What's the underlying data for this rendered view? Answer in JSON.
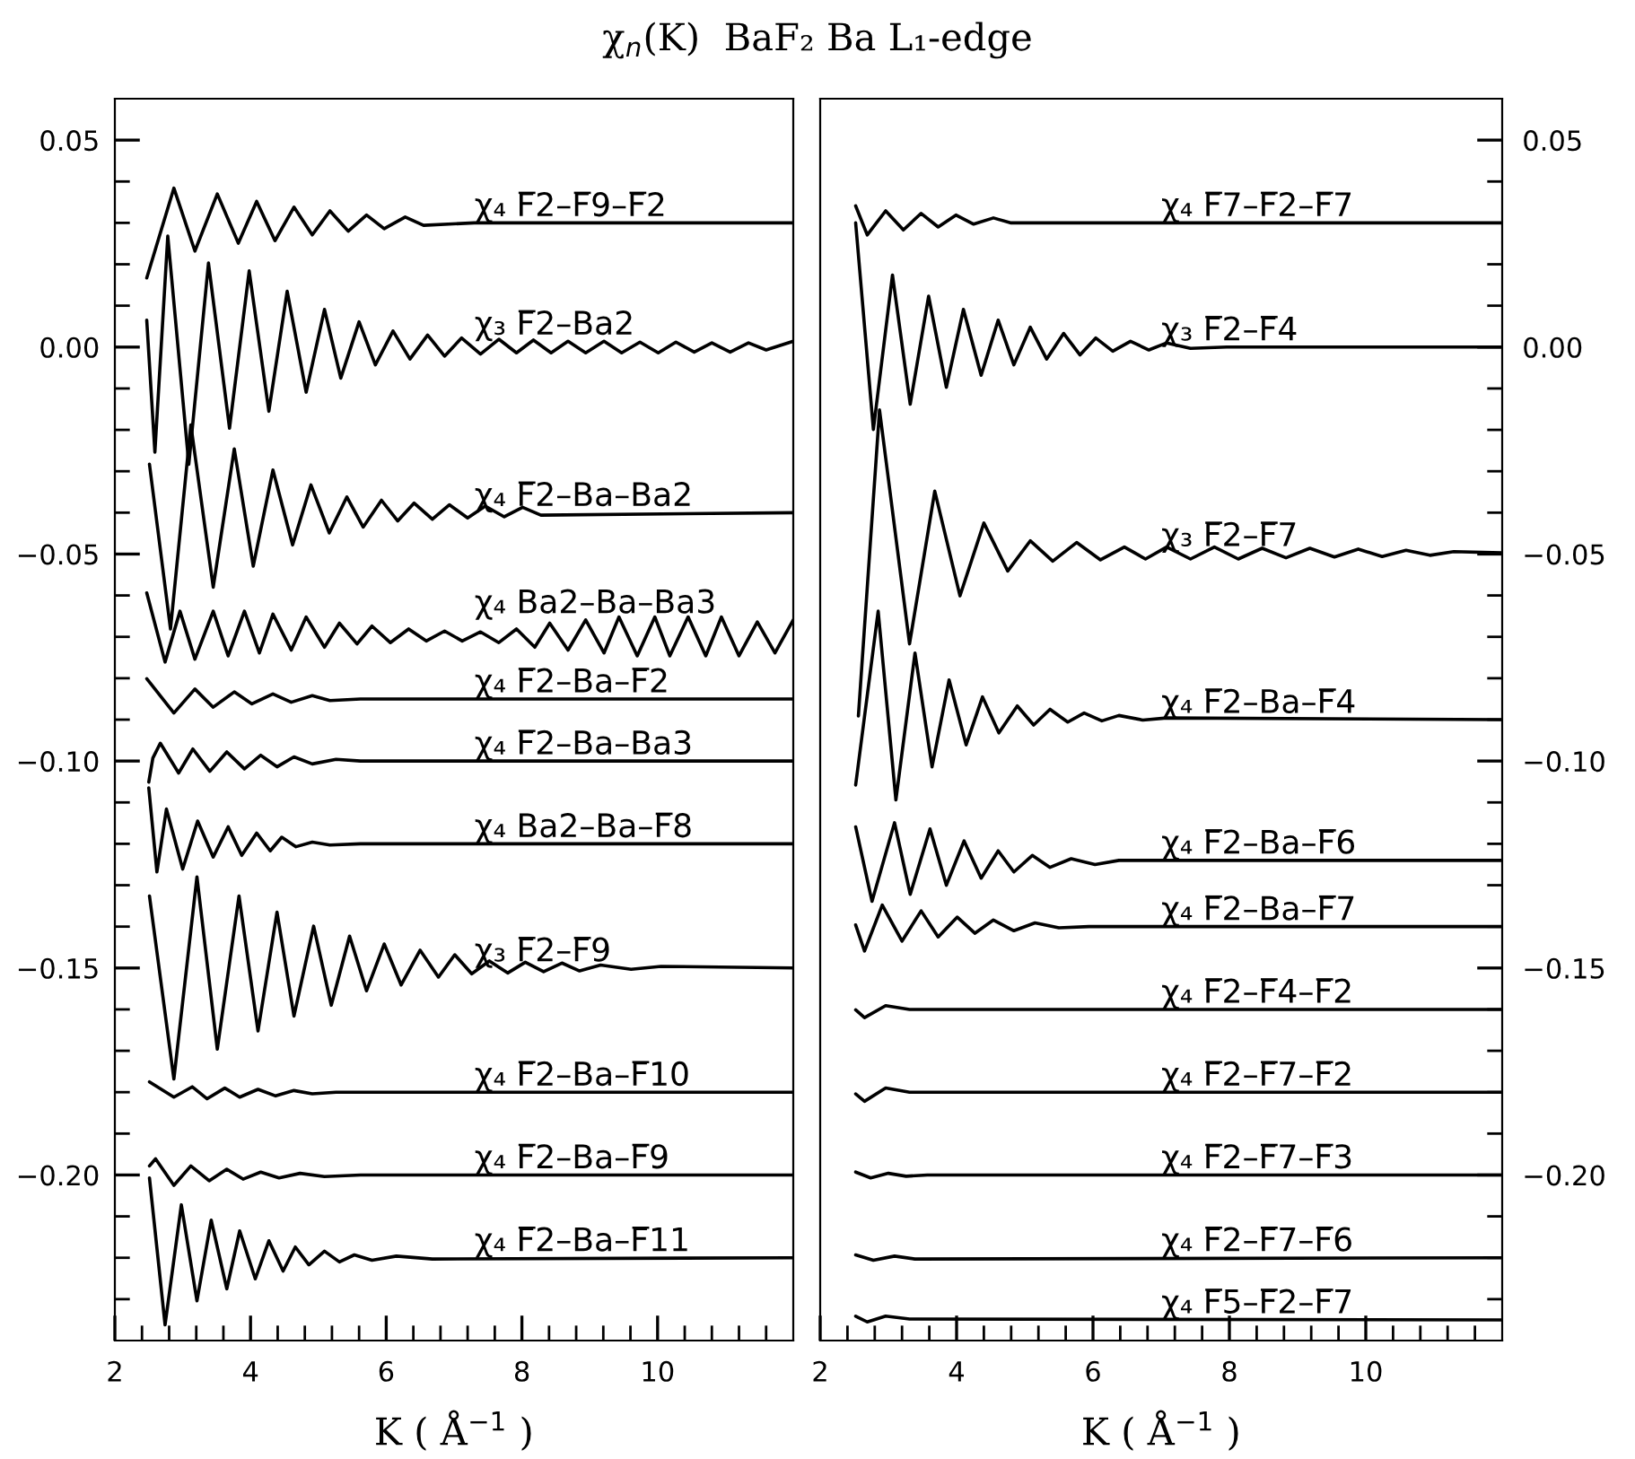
{
  "chart_data": [
    {
      "type": "line",
      "title": "χ$_{n}$(K)  BaF₂ Ba L₁-edge",
      "xlabel": "K ( Å$^{−1}$ )",
      "color": "#000000",
      "xlim": [
        2,
        12
      ],
      "ylim": [
        -0.24,
        0.06
      ],
      "xticks": [
        2,
        {
          "value": 2.4,
          "label": null
        },
        {
          "value": 2.8,
          "label": null
        },
        {
          "value": 3.2,
          "label": null
        },
        {
          "value": 3.6,
          "label": null
        },
        4,
        {
          "value": 4.4,
          "label": null
        },
        {
          "value": 4.8,
          "label": null
        },
        {
          "value": 5.2,
          "label": null
        },
        {
          "value": 5.6,
          "label": null
        },
        6,
        {
          "value": 6.4,
          "label": null
        },
        {
          "value": 6.8,
          "label": null
        },
        {
          "value": 7.2,
          "label": null
        },
        {
          "value": 7.6,
          "label": null
        },
        8,
        {
          "value": 8.4,
          "label": null
        },
        {
          "value": 8.8,
          "label": null
        },
        {
          "value": 9.2,
          "label": null
        },
        {
          "value": 9.6,
          "label": null
        },
        10,
        {
          "value": 10.4,
          "label": null
        },
        {
          "value": 10.8,
          "label": null
        },
        {
          "value": 11.2,
          "label": null
        },
        {
          "value": 11.6,
          "label": null
        }
      ],
      "yticks": [
        {
          "value": -0.23,
          "label": null
        },
        {
          "value": -0.22,
          "label": null
        },
        {
          "value": -0.21,
          "label": null
        },
        {
          "value": -0.2,
          "label": "−0.20"
        },
        {
          "value": -0.19,
          "label": null
        },
        {
          "value": -0.18,
          "label": null
        },
        {
          "value": -0.17,
          "label": null
        },
        {
          "value": -0.16,
          "label": null
        },
        {
          "value": -0.15,
          "label": "−0.15"
        },
        {
          "value": -0.14,
          "label": null
        },
        {
          "value": -0.13,
          "label": null
        },
        {
          "value": -0.12,
          "label": null
        },
        {
          "value": -0.11,
          "label": null
        },
        {
          "value": -0.1,
          "label": "−0.10"
        },
        {
          "value": -0.09,
          "label": null
        },
        {
          "value": -0.08,
          "label": null
        },
        {
          "value": -0.07,
          "label": null
        },
        {
          "value": -0.06,
          "label": null
        },
        {
          "value": -0.05,
          "label": "−0.05"
        },
        {
          "value": -0.04,
          "label": null
        },
        {
          "value": -0.03,
          "label": null
        },
        {
          "value": -0.02,
          "label": null
        },
        {
          "value": -0.01,
          "label": null
        },
        {
          "value": 0,
          "label": "0.00"
        },
        {
          "value": 0.01,
          "label": null
        },
        {
          "value": 0.02,
          "label": null
        },
        {
          "value": 0.03,
          "label": null
        },
        {
          "value": 0.04,
          "label": null
        },
        {
          "value": 0.05,
          "label": "0.05"
        }
      ],
      "series": [
        {
          "name": "χ₄ F̅2–F̅9–F̅2",
          "x": [
            2.47,
            2.87,
            3.18,
            3.51,
            3.82,
            4.09,
            4.36,
            4.64,
            4.91,
            5.17,
            5.44,
            5.71,
            5.97,
            6.28,
            6.55,
            7.3,
            12.0
          ],
          "values": [
            0.0167,
            0.0384,
            0.0232,
            0.037,
            0.0251,
            0.0352,
            0.0257,
            0.0338,
            0.0271,
            0.0329,
            0.028,
            0.0319,
            0.0286,
            0.0314,
            0.0294,
            0.03,
            0.03
          ]
        },
        {
          "name": "χ₃ F̅2–Ba2",
          "x": [
            2.47,
            2.59,
            2.78,
            3.09,
            3.38,
            3.69,
            3.98,
            4.27,
            4.54,
            4.82,
            5.09,
            5.33,
            5.6,
            5.84,
            6.1,
            6.35,
            6.61,
            6.86,
            7.11,
            7.39,
            7.66,
            7.92,
            8.17,
            8.43,
            8.68,
            8.94,
            9.21,
            9.47,
            9.74,
            10.01,
            10.27,
            10.54,
            10.8,
            11.07,
            11.34,
            11.6,
            12.0
          ],
          "values": [
            0.0065,
            -0.0254,
            0.0268,
            -0.0283,
            0.0203,
            -0.0196,
            0.0184,
            -0.0155,
            0.0135,
            -0.0109,
            0.0091,
            -0.0075,
            0.0061,
            -0.0043,
            0.0039,
            -0.0029,
            0.0029,
            -0.0022,
            0.0022,
            -0.0017,
            0.0019,
            -0.0014,
            0.0017,
            -0.0014,
            0.0014,
            -0.0014,
            0.0014,
            -0.0014,
            0.0012,
            -0.0014,
            0.0012,
            -0.0012,
            0.001,
            -0.0012,
            0.001,
            -0.0007,
            0.0014
          ]
        },
        {
          "name": "χ₄ F̅2–Ba–Ba2",
          "x": [
            2.51,
            2.82,
            3.12,
            3.45,
            3.76,
            4.04,
            4.33,
            4.62,
            4.89,
            5.16,
            5.42,
            5.66,
            5.93,
            6.17,
            6.41,
            6.68,
            6.93,
            7.2,
            7.46,
            7.74,
            8.01,
            8.28,
            12.0
          ],
          "values": [
            -0.0283,
            -0.0681,
            -0.0188,
            -0.058,
            -0.0246,
            -0.0529,
            -0.0297,
            -0.0478,
            -0.0333,
            -0.0449,
            -0.0362,
            -0.0435,
            -0.037,
            -0.042,
            -0.0377,
            -0.0416,
            -0.0381,
            -0.0413,
            -0.0384,
            -0.041,
            -0.0387,
            -0.0406,
            -0.04
          ]
        },
        {
          "name": "χ₄ Ba2–Ba–Ba3",
          "x": [
            2.47,
            2.74,
            2.96,
            3.18,
            3.45,
            3.67,
            3.91,
            4.13,
            4.33,
            4.6,
            4.82,
            5.09,
            5.31,
            5.57,
            5.79,
            6.06,
            6.33,
            6.59,
            6.86,
            7.12,
            7.39,
            7.66,
            7.92,
            8.19,
            8.41,
            8.68,
            8.94,
            9.21,
            9.43,
            9.7,
            9.96,
            10.18,
            10.45,
            10.71,
            10.94,
            11.2,
            11.47,
            11.73,
            12.0
          ],
          "values": [
            -0.0594,
            -0.0761,
            -0.0638,
            -0.0754,
            -0.0638,
            -0.0746,
            -0.0638,
            -0.0739,
            -0.0645,
            -0.0732,
            -0.0652,
            -0.0725,
            -0.0667,
            -0.0717,
            -0.0674,
            -0.0714,
            -0.0681,
            -0.071,
            -0.0686,
            -0.071,
            -0.0688,
            -0.0714,
            -0.0681,
            -0.0725,
            -0.0667,
            -0.0732,
            -0.0659,
            -0.0739,
            -0.0652,
            -0.0746,
            -0.0652,
            -0.0746,
            -0.0652,
            -0.0746,
            -0.0652,
            -0.0746,
            -0.0664,
            -0.0739,
            -0.0659
          ]
        },
        {
          "name": "χ₄ F̅2–Ba–F̅2",
          "x": [
            2.47,
            2.87,
            3.18,
            3.45,
            3.76,
            4.02,
            4.33,
            4.6,
            4.91,
            5.17,
            5.62,
            12.0
          ],
          "values": [
            -0.0801,
            -0.0884,
            -0.0826,
            -0.087,
            -0.0833,
            -0.0862,
            -0.0838,
            -0.0858,
            -0.0842,
            -0.0854,
            -0.085,
            -0.085
          ]
        },
        {
          "name": "χ₄ F̅2–Ba–Ba3",
          "x": [
            2.5,
            2.56,
            2.67,
            2.94,
            3.15,
            3.4,
            3.65,
            3.91,
            4.15,
            4.39,
            4.64,
            4.91,
            5.26,
            5.62,
            12.0
          ],
          "values": [
            -0.1051,
            -0.0993,
            -0.0957,
            -0.1029,
            -0.0971,
            -0.1025,
            -0.0978,
            -0.1019,
            -0.0986,
            -0.1014,
            -0.099,
            -0.1007,
            -0.0996,
            -0.1,
            -0.1
          ]
        },
        {
          "name": "χ₄ Ba2–Ba–F̅8",
          "x": [
            2.5,
            2.62,
            2.76,
            3.0,
            3.22,
            3.45,
            3.67,
            3.87,
            4.09,
            4.29,
            4.46,
            4.67,
            4.91,
            5.17,
            5.62,
            12.0
          ],
          "values": [
            -0.1065,
            -0.1268,
            -0.1116,
            -0.1261,
            -0.1145,
            -0.1232,
            -0.1159,
            -0.1228,
            -0.1174,
            -0.1217,
            -0.1184,
            -0.1207,
            -0.1196,
            -0.1203,
            -0.12,
            -0.12
          ]
        },
        {
          "name": "χ₃ F̅2–F̅9",
          "x": [
            2.51,
            2.87,
            3.21,
            3.51,
            3.83,
            4.11,
            4.39,
            4.64,
            4.93,
            5.19,
            5.46,
            5.71,
            5.97,
            6.22,
            6.5,
            6.77,
            7.01,
            7.26,
            7.52,
            7.79,
            8.05,
            8.32,
            8.59,
            8.85,
            9.16,
            9.61,
            10.05,
            12.0
          ],
          "values": [
            -0.1326,
            -0.1768,
            -0.128,
            -0.1696,
            -0.1326,
            -0.1652,
            -0.1365,
            -0.1616,
            -0.1399,
            -0.159,
            -0.1423,
            -0.1555,
            -0.1442,
            -0.1541,
            -0.1457,
            -0.1522,
            -0.1468,
            -0.1514,
            -0.1483,
            -0.1512,
            -0.1486,
            -0.1509,
            -0.1488,
            -0.1507,
            -0.1493,
            -0.1503,
            -0.1496,
            -0.15
          ]
        },
        {
          "name": "χ₄ F̅2–Ba–F̅10",
          "x": [
            2.51,
            2.87,
            3.14,
            3.36,
            3.62,
            3.84,
            4.11,
            4.37,
            4.64,
            4.91,
            5.26,
            12.0
          ],
          "values": [
            -0.1775,
            -0.1812,
            -0.1787,
            -0.1816,
            -0.179,
            -0.1812,
            -0.1793,
            -0.1809,
            -0.1796,
            -0.1804,
            -0.18,
            -0.18
          ]
        },
        {
          "name": "χ₄ F̅2–Ba–F̅9",
          "x": [
            2.51,
            2.6,
            2.87,
            3.12,
            3.39,
            3.65,
            3.89,
            4.15,
            4.42,
            4.73,
            5.09,
            5.62,
            12.0
          ],
          "values": [
            -0.1978,
            -0.1961,
            -0.2025,
            -0.1978,
            -0.2014,
            -0.1986,
            -0.201,
            -0.1993,
            -0.2007,
            -0.1996,
            -0.2004,
            -0.2,
            -0.2
          ]
        },
        {
          "name": "χ₄ F̅2–Ba–F̅11",
          "x": [
            2.51,
            2.74,
            2.98,
            3.21,
            3.42,
            3.65,
            3.84,
            4.07,
            4.27,
            4.48,
            4.66,
            4.86,
            5.09,
            5.31,
            5.53,
            5.79,
            6.15,
            6.68,
            12.0
          ],
          "values": [
            -0.2007,
            -0.2362,
            -0.2072,
            -0.2304,
            -0.2109,
            -0.2275,
            -0.2135,
            -0.2251,
            -0.2159,
            -0.2232,
            -0.2174,
            -0.2217,
            -0.2184,
            -0.221,
            -0.2193,
            -0.2206,
            -0.2196,
            -0.2203,
            -0.22
          ]
        }
      ]
    },
    {
      "type": "line",
      "xlabel": "K ( Å$^{−1}$ )",
      "color": "#000000",
      "xlim": [
        2,
        12
      ],
      "y2lim": [
        -0.24,
        0.06
      ],
      "xticks": [
        2,
        {
          "value": 2.4,
          "label": null
        },
        {
          "value": 2.8,
          "label": null
        },
        {
          "value": 3.2,
          "label": null
        },
        {
          "value": 3.6,
          "label": null
        },
        4,
        {
          "value": 4.4,
          "label": null
        },
        {
          "value": 4.8,
          "label": null
        },
        {
          "value": 5.2,
          "label": null
        },
        {
          "value": 5.6,
          "label": null
        },
        6,
        {
          "value": 6.4,
          "label": null
        },
        {
          "value": 6.8,
          "label": null
        },
        {
          "value": 7.2,
          "label": null
        },
        {
          "value": 7.6,
          "label": null
        },
        8,
        {
          "value": 8.4,
          "label": null
        },
        {
          "value": 8.8,
          "label": null
        },
        {
          "value": 9.2,
          "label": null
        },
        {
          "value": 9.6,
          "label": null
        },
        10,
        {
          "value": 10.4,
          "label": null
        },
        {
          "value": 10.8,
          "label": null
        },
        {
          "value": 11.2,
          "label": null
        },
        {
          "value": 11.6,
          "label": null
        }
      ],
      "y2ticks": [
        {
          "value": -0.23,
          "label": null
        },
        {
          "value": -0.22,
          "label": null
        },
        {
          "value": -0.21,
          "label": null
        },
        {
          "value": -0.2,
          "label": "−0.20"
        },
        {
          "value": -0.19,
          "label": null
        },
        {
          "value": -0.18,
          "label": null
        },
        {
          "value": -0.17,
          "label": null
        },
        {
          "value": -0.16,
          "label": null
        },
        {
          "value": -0.15,
          "label": "−0.15"
        },
        {
          "value": -0.14,
          "label": null
        },
        {
          "value": -0.13,
          "label": null
        },
        {
          "value": -0.12,
          "label": null
        },
        {
          "value": -0.11,
          "label": null
        },
        {
          "value": -0.1,
          "label": "−0.10"
        },
        {
          "value": -0.09,
          "label": null
        },
        {
          "value": -0.08,
          "label": null
        },
        {
          "value": -0.07,
          "label": null
        },
        {
          "value": -0.06,
          "label": null
        },
        {
          "value": -0.05,
          "label": "−0.05"
        },
        {
          "value": -0.04,
          "label": null
        },
        {
          "value": -0.03,
          "label": null
        },
        {
          "value": -0.02,
          "label": null
        },
        {
          "value": -0.01,
          "label": null
        },
        {
          "value": 0,
          "label": "0.00"
        },
        {
          "value": 0.01,
          "label": null
        },
        {
          "value": 0.02,
          "label": null
        },
        {
          "value": 0.03,
          "label": null
        },
        {
          "value": 0.04,
          "label": null
        },
        {
          "value": 0.05,
          "label": "0.05"
        }
      ],
      "series": [
        {
          "name": "χ₄ F̅7–F̅2–F̅7",
          "axis": "y2",
          "x": [
            2.52,
            2.69,
            2.96,
            3.22,
            3.48,
            3.73,
            3.99,
            4.25,
            4.54,
            4.8,
            5.32,
            12.0
          ],
          "values": [
            0.0341,
            0.0271,
            0.0329,
            0.0283,
            0.0323,
            0.029,
            0.0319,
            0.0297,
            0.0312,
            0.03,
            0.03,
            0.03
          ]
        },
        {
          "name": "χ₃ F̅2–F̅4",
          "axis": "y2",
          "x": [
            2.52,
            2.78,
            3.06,
            3.32,
            3.59,
            3.85,
            4.1,
            4.36,
            4.61,
            4.84,
            5.08,
            5.32,
            5.57,
            5.81,
            6.04,
            6.29,
            6.55,
            6.82,
            7.08,
            7.43,
            7.96,
            12.0
          ],
          "values": [
            0.03,
            -0.0199,
            0.0174,
            -0.0138,
            0.0123,
            -0.0097,
            0.0091,
            -0.0068,
            0.0065,
            -0.0043,
            0.0048,
            -0.0029,
            0.0033,
            -0.0019,
            0.0022,
            -0.001,
            0.0014,
            -0.0007,
            0.001,
            -0.0003,
            0,
            0
          ]
        },
        {
          "name": "χ₃ F̅2–F̅7",
          "axis": "y2",
          "x": [
            2.56,
            2.87,
            3.31,
            3.68,
            4.05,
            4.4,
            4.75,
            5.08,
            5.41,
            5.76,
            6.11,
            6.46,
            6.77,
            7.08,
            7.43,
            7.78,
            8.13,
            8.48,
            8.83,
            9.18,
            9.54,
            9.89,
            10.24,
            10.59,
            10.94,
            11.29,
            12.0
          ],
          "values": [
            -0.0891,
            -0.0152,
            -0.0717,
            -0.0348,
            -0.0601,
            -0.0425,
            -0.0541,
            -0.0468,
            -0.0517,
            -0.0472,
            -0.0514,
            -0.0483,
            -0.0512,
            -0.0483,
            -0.0512,
            -0.0483,
            -0.0512,
            -0.0486,
            -0.0509,
            -0.0486,
            -0.0507,
            -0.0488,
            -0.0506,
            -0.0491,
            -0.0503,
            -0.0494,
            -0.0497
          ]
        },
        {
          "name": "χ₄ F̅2–Ba–F̅4",
          "axis": "y2",
          "x": [
            2.52,
            2.85,
            3.11,
            3.39,
            3.64,
            3.89,
            4.14,
            4.38,
            4.62,
            4.89,
            5.13,
            5.37,
            5.63,
            5.87,
            6.13,
            6.38,
            6.73,
            7.08,
            12.0
          ],
          "values": [
            -0.1058,
            -0.0638,
            -0.1094,
            -0.0739,
            -0.1014,
            -0.0804,
            -0.0961,
            -0.0845,
            -0.0932,
            -0.0867,
            -0.0913,
            -0.0875,
            -0.0906,
            -0.0884,
            -0.0903,
            -0.089,
            -0.0901,
            -0.0896,
            -0.09
          ]
        },
        {
          "name": "χ₄ F̅2–Ba–F̅6",
          "axis": "y2",
          "x": [
            2.52,
            2.76,
            3.09,
            3.32,
            3.61,
            3.85,
            4.11,
            4.36,
            4.61,
            4.84,
            5.11,
            5.37,
            5.68,
            6.03,
            6.38,
            12.0
          ],
          "values": [
            -0.1159,
            -0.1339,
            -0.1149,
            -0.1322,
            -0.1164,
            -0.13,
            -0.1193,
            -0.1283,
            -0.1217,
            -0.1268,
            -0.1228,
            -0.1257,
            -0.1236,
            -0.125,
            -0.124,
            -0.124
          ]
        },
        {
          "name": "χ₄ F̅2–Ba–F̅7",
          "axis": "y2",
          "x": [
            2.52,
            2.65,
            2.91,
            3.2,
            3.48,
            3.73,
            4.01,
            4.27,
            4.54,
            4.84,
            5.15,
            5.5,
            5.94,
            12.0
          ],
          "values": [
            -0.1396,
            -0.1459,
            -0.1348,
            -0.1435,
            -0.1362,
            -0.1425,
            -0.1377,
            -0.1416,
            -0.1384,
            -0.141,
            -0.1391,
            -0.1403,
            -0.14,
            -0.14
          ]
        },
        {
          "name": "χ₄ F̅2–F̅4–F̅2",
          "axis": "y2",
          "x": [
            2.52,
            2.65,
            2.96,
            3.31,
            12.0
          ],
          "values": [
            -0.1601,
            -0.162,
            -0.1591,
            -0.16,
            -0.16
          ]
        },
        {
          "name": "χ₄ F̅2–F̅7–F̅2",
          "axis": "y2",
          "x": [
            2.52,
            2.65,
            2.96,
            3.31,
            12.0
          ],
          "values": [
            -0.1804,
            -0.1822,
            -0.179,
            -0.18,
            -0.18
          ]
        },
        {
          "name": "χ₄ F̅2–F̅7–F̅3",
          "axis": "y2",
          "x": [
            2.52,
            2.74,
            3.0,
            3.26,
            3.57,
            12.0
          ],
          "values": [
            -0.1993,
            -0.2007,
            -0.1996,
            -0.2003,
            -0.2,
            -0.2
          ]
        },
        {
          "name": "χ₄ F̅2–F̅7–F̅6",
          "axis": "y2",
          "x": [
            2.52,
            2.78,
            3.09,
            3.39,
            12.0
          ],
          "values": [
            -0.2193,
            -0.2206,
            -0.2196,
            -0.2203,
            -0.22
          ]
        },
        {
          "name": "χ₄ F̅5–F̅2–F̅7",
          "axis": "y2",
          "x": [
            2.52,
            2.69,
            2.96,
            3.31,
            12.0
          ],
          "values": [
            -0.2341,
            -0.2355,
            -0.2341,
            -0.2348,
            -0.235
          ]
        }
      ]
    }
  ]
}
